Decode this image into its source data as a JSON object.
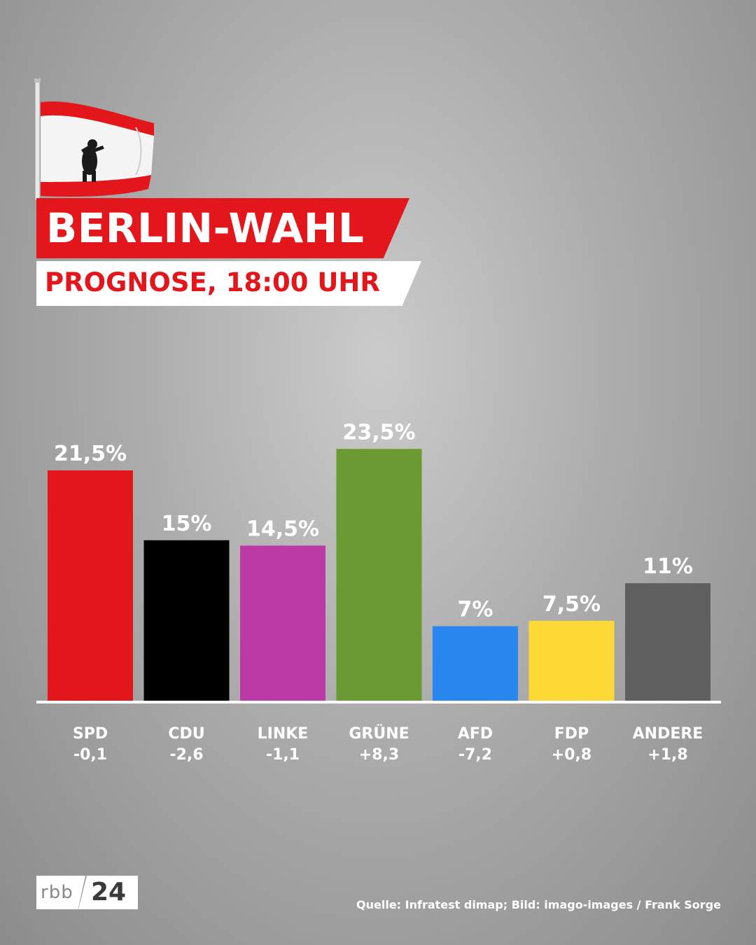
{
  "header": {
    "title": "BERLIN-WAHL",
    "subtitle": "PROGNOSE, 18:00 UHR"
  },
  "flag": {
    "icon": "berlin-flag-icon",
    "colors": {
      "red": "#e3161b",
      "white": "#ffffff"
    }
  },
  "chart_data": {
    "type": "bar",
    "categories": [
      "SPD",
      "CDU",
      "LINKE",
      "GRÜNE",
      "AFD",
      "FDP",
      "ANDERE"
    ],
    "values": [
      21.5,
      15,
      14.5,
      23.5,
      7,
      7.5,
      11
    ],
    "value_labels": [
      "21,5%",
      "15%",
      "14,5%",
      "23,5%",
      "7%",
      "7,5%",
      "11%"
    ],
    "changes": [
      "-0,1",
      "-2,6",
      "-1,1",
      "+8,3",
      "-7,2",
      "+0,8",
      "+1,8"
    ],
    "colors": [
      "#e3161b",
      "#000000",
      "#bb3aa6",
      "#6b9a32",
      "#2a87ef",
      "#fdd935",
      "#606060"
    ],
    "ylim": [
      0,
      25
    ],
    "grid": false
  },
  "footer": {
    "logo_rbb": "rbb",
    "logo_24": "24",
    "source": "Quelle: Infratest dimap; Bild: imago-images / Frank Sorge"
  }
}
